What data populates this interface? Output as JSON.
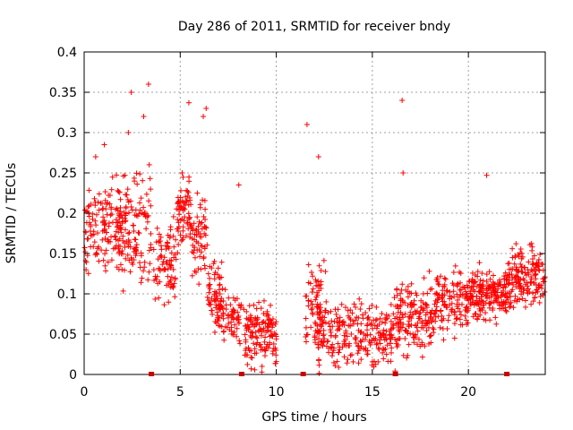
{
  "chart_data": {
    "type": "scatter",
    "title": "Day 286 of 2011, SRMTID for receiver bndy",
    "xlabel": "GPS time / hours",
    "ylabel": "SRMTID / TECUs",
    "xlim": [
      0,
      24
    ],
    "ylim": [
      0,
      0.4
    ],
    "grid": true,
    "marker": "plus",
    "color": "#ff0000",
    "x_ticks": [
      0,
      5,
      10,
      15,
      20
    ],
    "x_tick_labels": [
      "0",
      "5",
      "10",
      "15",
      "20"
    ],
    "y_ticks": [
      0,
      0.05,
      0.1,
      0.15,
      0.2,
      0.25,
      0.3,
      0.35,
      0.4
    ],
    "y_tick_labels": [
      "0",
      "0.05",
      "0.1",
      "0.15",
      "0.2",
      "0.25",
      "0.3",
      "0.35",
      "0.4"
    ],
    "data_gap_markers_x": [
      3.5,
      8.2,
      11.4,
      16.2,
      22.0
    ],
    "density_profile": [
      {
        "x_start": 0.0,
        "x_end": 2.0,
        "y_center": 0.18,
        "y_spread": 0.06,
        "count": 150
      },
      {
        "x_start": 2.0,
        "x_end": 3.5,
        "y_center": 0.18,
        "y_spread": 0.07,
        "count": 110
      },
      {
        "x_start": 3.6,
        "x_end": 4.8,
        "y_center": 0.14,
        "y_spread": 0.05,
        "count": 80
      },
      {
        "x_start": 4.8,
        "x_end": 5.6,
        "y_center": 0.2,
        "y_spread": 0.05,
        "count": 70
      },
      {
        "x_start": 5.6,
        "x_end": 6.4,
        "y_center": 0.17,
        "y_spread": 0.05,
        "count": 60
      },
      {
        "x_start": 6.4,
        "x_end": 7.2,
        "y_center": 0.11,
        "y_spread": 0.04,
        "count": 50
      },
      {
        "x_start": 6.8,
        "x_end": 8.2,
        "y_center": 0.07,
        "y_spread": 0.03,
        "count": 80
      },
      {
        "x_start": 8.3,
        "x_end": 10.0,
        "y_center": 0.05,
        "y_spread": 0.04,
        "count": 140
      },
      {
        "x_start": 11.5,
        "x_end": 12.6,
        "y_center": 0.09,
        "y_spread": 0.06,
        "count": 70
      },
      {
        "x_start": 12.0,
        "x_end": 16.2,
        "y_center": 0.05,
        "y_spread": 0.04,
        "count": 260
      },
      {
        "x_start": 16.2,
        "x_end": 18.2,
        "y_center": 0.07,
        "y_spread": 0.05,
        "count": 160
      },
      {
        "x_start": 18.2,
        "x_end": 20.0,
        "y_center": 0.09,
        "y_spread": 0.04,
        "count": 130
      },
      {
        "x_start": 20.0,
        "x_end": 22.0,
        "y_center": 0.1,
        "y_spread": 0.03,
        "count": 180
      },
      {
        "x_start": 22.0,
        "x_end": 24.0,
        "y_center": 0.12,
        "y_spread": 0.04,
        "count": 170
      }
    ],
    "notable_points": [
      {
        "x": 3.35,
        "y": 0.36
      },
      {
        "x": 2.45,
        "y": 0.35
      },
      {
        "x": 5.45,
        "y": 0.337
      },
      {
        "x": 6.35,
        "y": 0.33
      },
      {
        "x": 11.6,
        "y": 0.31
      },
      {
        "x": 16.55,
        "y": 0.34
      },
      {
        "x": 16.6,
        "y": 0.25
      },
      {
        "x": 20.95,
        "y": 0.247
      },
      {
        "x": 12.2,
        "y": 0.27
      },
      {
        "x": 1.05,
        "y": 0.285
      },
      {
        "x": 0.6,
        "y": 0.27
      },
      {
        "x": 2.3,
        "y": 0.3
      },
      {
        "x": 3.1,
        "y": 0.32
      },
      {
        "x": 5.1,
        "y": 0.25
      },
      {
        "x": 6.2,
        "y": 0.32
      },
      {
        "x": 8.05,
        "y": 0.235
      }
    ]
  }
}
